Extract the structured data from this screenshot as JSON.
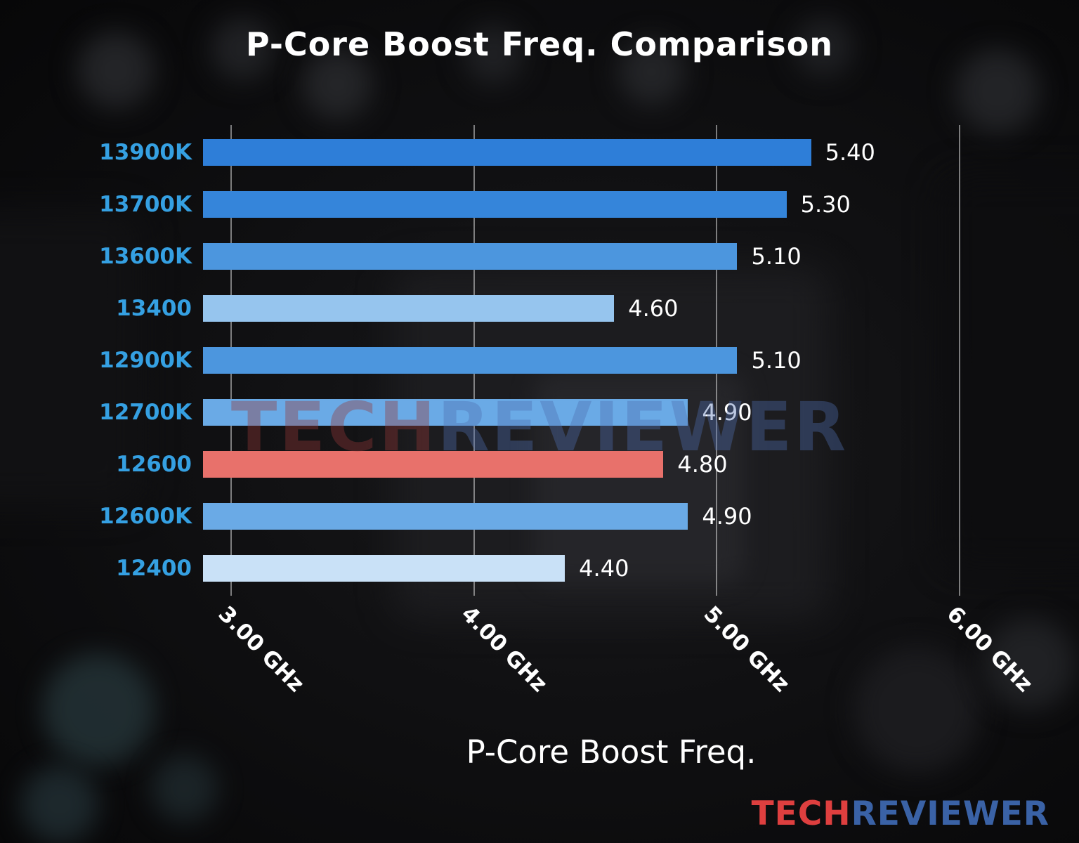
{
  "title": "P-Core Boost Freq. Comparison",
  "watermark": {
    "part1": "TECH",
    "part2": "REVIEWER"
  },
  "logo": {
    "part1": "TECH",
    "part2": "REVIEWER",
    "tech_color": "#de3f3f",
    "reviewer_color": "#3a62a6"
  },
  "chart_data": {
    "type": "bar",
    "orientation": "horizontal",
    "title": "P-Core Boost Freq. Comparison",
    "xlabel": "P-Core Boost Freq.",
    "ylabel": "",
    "categories": [
      "13900K",
      "13700K",
      "13600K",
      "13400",
      "12900K",
      "12700K",
      "12600",
      "12600K",
      "12400"
    ],
    "values": [
      5.4,
      5.3,
      5.1,
      4.6,
      5.1,
      4.9,
      4.8,
      4.9,
      4.4
    ],
    "value_labels": [
      "5.40",
      "5.30",
      "5.10",
      "4.60",
      "5.10",
      "4.90",
      "4.80",
      "4.90",
      "4.40"
    ],
    "bar_colors": [
      "#2e7ed8",
      "#3585da",
      "#4c96de",
      "#96c5ee",
      "#4c96de",
      "#6aaae6",
      "#e8716b",
      "#6aaae6",
      "#c9e1f7"
    ],
    "highlight_index": 6,
    "highlight_color": "#e8716b",
    "unit": "GHz",
    "xlim": [
      2.93,
      6.2
    ],
    "xticks": [
      {
        "value": 3,
        "label": "3.00 GHz"
      },
      {
        "value": 4,
        "label": "4.00 GHz"
      },
      {
        "value": 5,
        "label": "5.00 GHz"
      },
      {
        "value": 6,
        "label": "6.00 GHz"
      }
    ],
    "grid": true,
    "legend": "none",
    "category_label_color": "#35a0e2",
    "value_label_color": "#ffffff"
  }
}
